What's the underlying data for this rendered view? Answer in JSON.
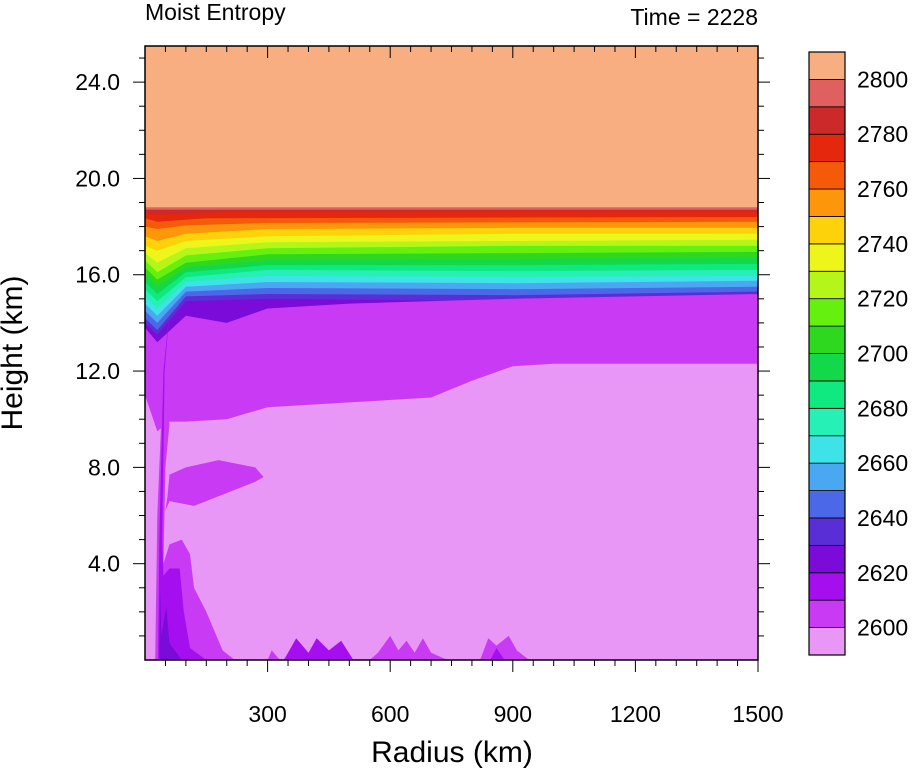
{
  "chart_data": {
    "type": "heatmap",
    "subtype": "filled-contour",
    "title_left": "Moist Entropy",
    "title_right": "Time = 2228",
    "xlabel": "Radius (km)",
    "ylabel": "Height (km)",
    "xlim": [
      0,
      1500
    ],
    "ylim": [
      0,
      25.5
    ],
    "xticks": [
      300,
      600,
      900,
      1200,
      1500
    ],
    "xtick_labels": [
      "300",
      "600",
      "900",
      "1200",
      "1500"
    ],
    "yticks": [
      4,
      8,
      12,
      16,
      20,
      24
    ],
    "ytick_labels": [
      "4.0",
      "8.0",
      "12.0",
      "16.0",
      "20.0",
      "24.0"
    ],
    "colorbar": {
      "levels": [
        2600,
        2610,
        2620,
        2630,
        2640,
        2650,
        2660,
        2670,
        2680,
        2690,
        2700,
        2710,
        2720,
        2730,
        2740,
        2750,
        2760,
        2770,
        2780,
        2790,
        2800
      ],
      "tick_labels": [
        "2600",
        "2620",
        "2640",
        "2660",
        "2680",
        "2700",
        "2720",
        "2740",
        "2760",
        "2780",
        "2800"
      ],
      "colors": [
        "#e897f7",
        "#c93af5",
        "#a50ff0",
        "#7a0bd9",
        "#5a2ed6",
        "#4a68e8",
        "#4aa8f2",
        "#3ee3e8",
        "#26f0b5",
        "#10e880",
        "#13d94a",
        "#2ed81e",
        "#66f010",
        "#b4f51a",
        "#eef51a",
        "#fdd20b",
        "#fd960a",
        "#f55a0a",
        "#e5270d",
        "#cc2a2a",
        "#e06060",
        "#f9ae82"
      ]
    },
    "bands": [
      {
        "level": 21,
        "profile": [
          [
            0,
            18.8
          ],
          [
            1500,
            18.8
          ]
        ]
      },
      {
        "level": 20,
        "profile": [
          [
            0,
            18.7
          ],
          [
            1500,
            18.7
          ]
        ]
      },
      {
        "level": 19,
        "profile": [
          [
            0,
            18.55
          ],
          [
            30,
            18.5
          ],
          [
            200,
            18.6
          ],
          [
            1500,
            18.6
          ]
        ]
      },
      {
        "level": 18,
        "profile": [
          [
            0,
            18.35
          ],
          [
            30,
            18.2
          ],
          [
            150,
            18.35
          ],
          [
            1500,
            18.4
          ]
        ]
      },
      {
        "level": 17,
        "profile": [
          [
            0,
            18.0
          ],
          [
            30,
            17.9
          ],
          [
            100,
            18.05
          ],
          [
            300,
            18.15
          ],
          [
            1500,
            18.2
          ]
        ]
      },
      {
        "level": 16,
        "profile": [
          [
            0,
            17.6
          ],
          [
            30,
            17.4
          ],
          [
            100,
            17.7
          ],
          [
            300,
            17.9
          ],
          [
            900,
            17.95
          ],
          [
            1500,
            17.95
          ]
        ]
      },
      {
        "level": 15,
        "profile": [
          [
            0,
            17.2
          ],
          [
            30,
            17.0
          ],
          [
            100,
            17.4
          ],
          [
            300,
            17.6
          ],
          [
            900,
            17.7
          ],
          [
            1500,
            17.7
          ]
        ]
      },
      {
        "level": 14,
        "profile": [
          [
            0,
            16.9
          ],
          [
            30,
            16.5
          ],
          [
            100,
            17.1
          ],
          [
            300,
            17.35
          ],
          [
            900,
            17.4
          ],
          [
            1500,
            17.45
          ]
        ]
      },
      {
        "level": 13,
        "profile": [
          [
            0,
            16.6
          ],
          [
            30,
            16.1
          ],
          [
            100,
            16.8
          ],
          [
            300,
            17.1
          ],
          [
            900,
            17.2
          ],
          [
            1500,
            17.2
          ]
        ]
      },
      {
        "level": 12,
        "profile": [
          [
            0,
            16.3
          ],
          [
            30,
            15.8
          ],
          [
            100,
            16.5
          ],
          [
            300,
            16.85
          ],
          [
            900,
            16.9
          ],
          [
            1500,
            16.95
          ]
        ]
      },
      {
        "level": 11,
        "profile": [
          [
            0,
            16.0
          ],
          [
            30,
            15.5
          ],
          [
            100,
            16.3
          ],
          [
            300,
            16.6
          ],
          [
            900,
            16.65
          ],
          [
            1500,
            16.7
          ]
        ]
      },
      {
        "level": 10,
        "profile": [
          [
            0,
            15.7
          ],
          [
            30,
            15.2
          ],
          [
            100,
            16.1
          ],
          [
            300,
            16.4
          ],
          [
            900,
            16.4
          ],
          [
            1500,
            16.45
          ]
        ]
      },
      {
        "level": 9,
        "profile": [
          [
            0,
            15.4
          ],
          [
            30,
            14.9
          ],
          [
            100,
            15.9
          ],
          [
            300,
            16.2
          ],
          [
            900,
            16.15
          ],
          [
            1500,
            16.2
          ]
        ]
      },
      {
        "level": 8,
        "profile": [
          [
            0,
            15.1
          ],
          [
            30,
            14.6
          ],
          [
            100,
            15.7
          ],
          [
            300,
            15.95
          ],
          [
            900,
            15.9
          ],
          [
            1500,
            15.95
          ]
        ]
      },
      {
        "level": 7,
        "profile": [
          [
            0,
            14.8
          ],
          [
            30,
            14.3
          ],
          [
            100,
            15.5
          ],
          [
            300,
            15.7
          ],
          [
            900,
            15.65
          ],
          [
            1500,
            15.75
          ]
        ]
      },
      {
        "level": 6,
        "profile": [
          [
            0,
            14.5
          ],
          [
            30,
            14.0
          ],
          [
            100,
            15.3
          ],
          [
            300,
            15.45
          ],
          [
            900,
            15.4
          ],
          [
            1500,
            15.5
          ]
        ]
      },
      {
        "level": 5,
        "profile": [
          [
            0,
            14.2
          ],
          [
            30,
            13.7
          ],
          [
            100,
            15.1
          ],
          [
            300,
            15.2
          ],
          [
            900,
            15.15
          ],
          [
            1500,
            15.3
          ]
        ]
      },
      {
        "level": 4,
        "profile": [
          [
            0,
            14.0
          ],
          [
            30,
            13.5
          ],
          [
            100,
            14.9
          ],
          [
            300,
            15.0
          ],
          [
            900,
            14.9
          ],
          [
            1500,
            15.1
          ]
        ]
      },
      {
        "level": 2,
        "profile": [
          [
            0,
            13.8
          ],
          [
            30,
            13.2
          ],
          [
            100,
            14.3
          ],
          [
            200,
            14.0
          ],
          [
            300,
            14.6
          ],
          [
            500,
            14.8
          ],
          [
            900,
            15.0
          ],
          [
            1500,
            15.2
          ]
        ]
      },
      {
        "level": 1,
        "profile": [
          [
            0,
            11.0
          ],
          [
            30,
            9.5
          ],
          [
            60,
            9.9
          ],
          [
            100,
            9.9
          ],
          [
            200,
            10.0
          ],
          [
            300,
            10.5
          ],
          [
            500,
            10.7
          ],
          [
            700,
            10.9
          ],
          [
            800,
            11.6
          ],
          [
            900,
            12.2
          ],
          [
            1000,
            12.3
          ],
          [
            1500,
            12.3
          ]
        ]
      }
    ],
    "regions": [
      {
        "level": 2,
        "points": [
          [
            50,
            6.2
          ],
          [
            60,
            6.6
          ],
          [
            120,
            6.4
          ],
          [
            180,
            6.8
          ],
          [
            270,
            7.4
          ],
          [
            290,
            7.6
          ],
          [
            270,
            8.0
          ],
          [
            180,
            8.3
          ],
          [
            100,
            8.0
          ],
          [
            60,
            7.7
          ],
          [
            55,
            6.8
          ]
        ]
      },
      {
        "level": 2,
        "points": [
          [
            25,
            0
          ],
          [
            30,
            6
          ],
          [
            40,
            10
          ],
          [
            50,
            10.5
          ],
          [
            60,
            9.8
          ],
          [
            50,
            8
          ],
          [
            45,
            4
          ],
          [
            60,
            4.8
          ],
          [
            90,
            5.0
          ],
          [
            110,
            4.4
          ],
          [
            120,
            3.0
          ],
          [
            150,
            2.0
          ],
          [
            190,
            0.4
          ],
          [
            220,
            0
          ]
        ]
      },
      {
        "level": 3,
        "points": [
          [
            32,
            0
          ],
          [
            35,
            5
          ],
          [
            45,
            12
          ],
          [
            60,
            14.5
          ],
          [
            48,
            12
          ],
          [
            42,
            5
          ],
          [
            45,
            3.5
          ],
          [
            60,
            3.8
          ],
          [
            85,
            3.8
          ],
          [
            95,
            2.0
          ],
          [
            110,
            0.5
          ],
          [
            150,
            0
          ]
        ]
      },
      {
        "level": 4,
        "points": [
          [
            35,
            0
          ],
          [
            37,
            3
          ],
          [
            40,
            1
          ],
          [
            52,
            2.2
          ],
          [
            60,
            0.7
          ],
          [
            90,
            0
          ]
        ]
      },
      {
        "level": 3,
        "points": [
          [
            340,
            0
          ],
          [
            370,
            0.9
          ],
          [
            400,
            0.3
          ],
          [
            420,
            0.9
          ],
          [
            450,
            0.4
          ],
          [
            480,
            0.8
          ],
          [
            510,
            0
          ],
          [
            540,
            0
          ]
        ]
      },
      {
        "level": 2,
        "points": [
          [
            300,
            0
          ],
          [
            310,
            0.4
          ],
          [
            330,
            0
          ],
          [
            550,
            0
          ],
          [
            570,
            0.3
          ],
          [
            600,
            1.0
          ],
          [
            620,
            0.4
          ],
          [
            640,
            0.8
          ],
          [
            660,
            0.3
          ],
          [
            680,
            0.9
          ],
          [
            700,
            0.3
          ],
          [
            740,
            0
          ]
        ]
      },
      {
        "level": 2,
        "points": [
          [
            820,
            0
          ],
          [
            840,
            0.9
          ],
          [
            860,
            0.6
          ],
          [
            890,
            1.0
          ],
          [
            910,
            0.4
          ],
          [
            940,
            0
          ]
        ]
      },
      {
        "level": 3,
        "points": [
          [
            845,
            0
          ],
          [
            860,
            0.5
          ],
          [
            880,
            0
          ]
        ]
      }
    ]
  }
}
